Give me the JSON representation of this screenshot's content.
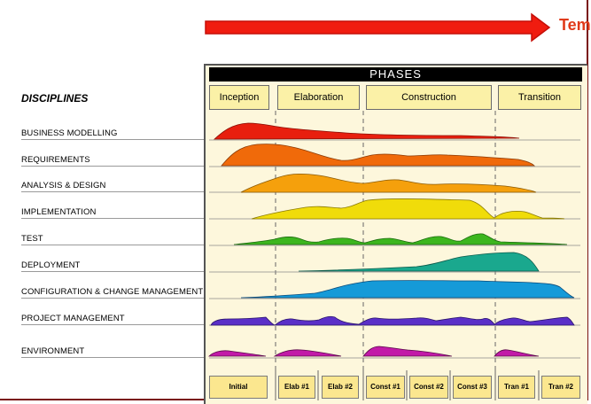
{
  "time_label": "Tem",
  "disciplines_heading": "DISCIPLINES",
  "phases_title": "PHASES",
  "phases": [
    {
      "label": "Inception"
    },
    {
      "label": "Elaboration"
    },
    {
      "label": "Construction"
    },
    {
      "label": "Transition"
    }
  ],
  "iterations": [
    {
      "label": "Initial"
    },
    {
      "label": "Elab #1"
    },
    {
      "label": "Elab #2"
    },
    {
      "label": "Const #1"
    },
    {
      "label": "Const #2"
    },
    {
      "label": "Const #3"
    },
    {
      "label": "Tran #1"
    },
    {
      "label": "Tran #2"
    }
  ],
  "disciplines": [
    {
      "label": "BUSINESS MODELLING",
      "color": "#e81f0e"
    },
    {
      "label": "REQUIREMENTS",
      "color": "#f06a0a"
    },
    {
      "label": "ANALYSIS & DESIGN",
      "color": "#f5a00c"
    },
    {
      "label": "IMPLEMENTATION",
      "color": "#f0dc0a"
    },
    {
      "label": "TEST",
      "color": "#3cb61e"
    },
    {
      "label": "DEPLOYMENT",
      "color": "#1aa88e"
    },
    {
      "label": "CONFIGURATION & CHANGE MANAGEMENT",
      "color": "#159ad8"
    },
    {
      "label": "PROJECT MANAGEMENT",
      "color": "#5a2fc8"
    },
    {
      "label": "ENVIRONMENT",
      "color": "#c21aa8"
    }
  ],
  "colors": {
    "arrow": "#f01c10",
    "panel": "#fdf7dc",
    "phase_box": "#fbf1a7",
    "iteration_box": "#fbe78f"
  }
}
